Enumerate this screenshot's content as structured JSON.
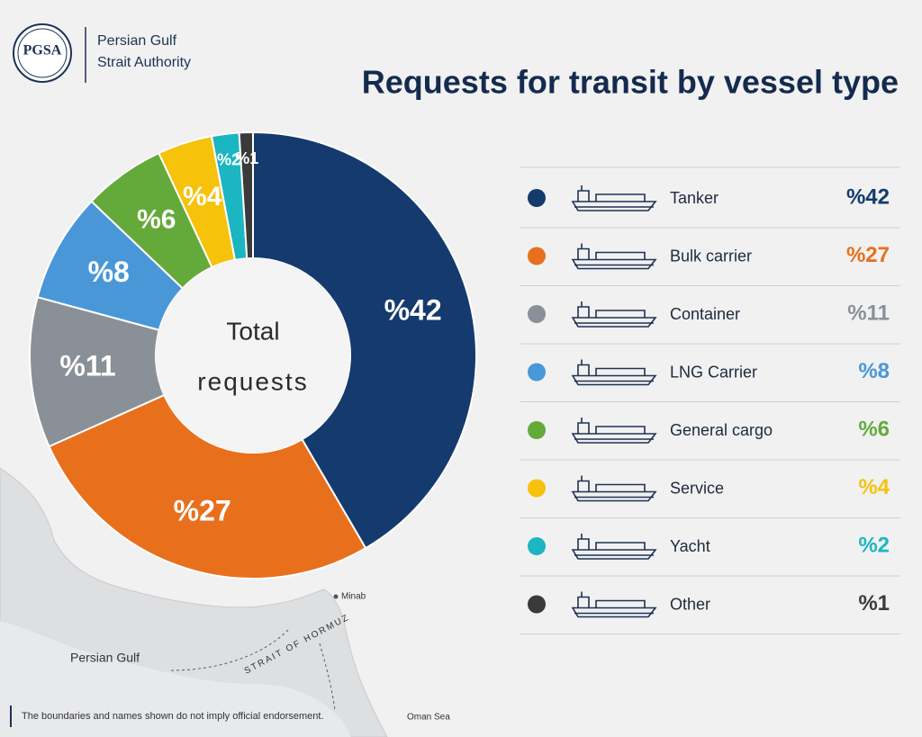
{
  "header": {
    "logo": "PGSA",
    "org_name": [
      "Persian Gulf",
      "Strait Authority"
    ]
  },
  "chart_data": {
    "type": "pie",
    "donut": true,
    "title": "Requests for transit by vessel type",
    "center_label": [
      "Total",
      "requests"
    ],
    "categories": [
      "Tanker",
      "Bulk carrier",
      "Container",
      "LNG Carrier",
      "General cargo",
      "Service",
      "Yacht",
      "Other"
    ],
    "values": [
      42,
      27,
      11,
      8,
      6,
      4,
      2,
      1
    ],
    "value_labels": [
      "%42",
      "%27",
      "%11",
      "%8",
      "%6",
      "%4",
      "%2",
      "%1"
    ],
    "colors": [
      "#143a6e",
      "#e8701c",
      "#8a9097",
      "#4a97d8",
      "#64aa3a",
      "#f7c20c",
      "#1bb6c2",
      "#3a3a3a"
    ],
    "legend_position": "right"
  },
  "map": {
    "labels": [
      "Minab",
      "Persian Gulf",
      "STRAIT OF HORMUZ",
      "Oman Sea"
    ]
  },
  "footer": {
    "disclaimer": "The boundaries and names shown do not imply official endorsement."
  }
}
